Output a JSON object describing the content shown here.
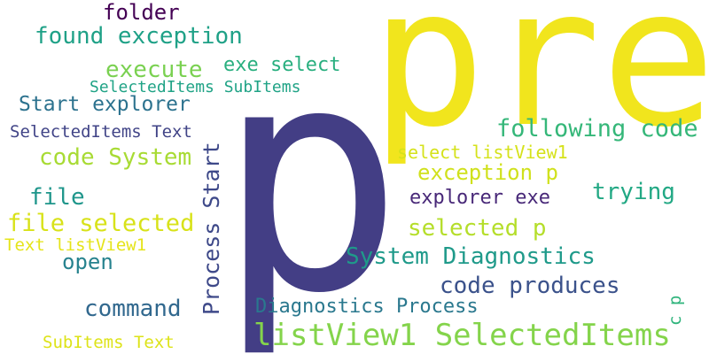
{
  "words": [
    {
      "id": "pre",
      "text": "pre",
      "color": "#f1e51d"
    },
    {
      "id": "p",
      "text": "p",
      "color": "#433e85"
    },
    {
      "id": "listview1-selecteditems",
      "text": "listView1 SelectedItems",
      "color": "#84d44b"
    },
    {
      "id": "system-diagnostics",
      "text": "System Diagnostics",
      "color": "#1f9a8a"
    },
    {
      "id": "following-code",
      "text": "following code",
      "color": "#35b779"
    },
    {
      "id": "exception-p",
      "text": "exception p",
      "color": "#d0e11c"
    },
    {
      "id": "selected-p",
      "text": "selected p",
      "color": "#b5de2b"
    },
    {
      "id": "code-produces",
      "text": "code produces",
      "color": "#3b528b"
    },
    {
      "id": "trying",
      "text": "trying",
      "color": "#22a884"
    },
    {
      "id": "explorer-exe",
      "text": "explorer exe",
      "color": "#482878"
    },
    {
      "id": "select-listview1",
      "text": "select listView1",
      "color": "#d5e21a"
    },
    {
      "id": "diagnostics-process",
      "text": "Diagnostics Process",
      "color": "#2a788e"
    },
    {
      "id": "process-start",
      "text": "Process Start",
      "color": "#3e4989"
    },
    {
      "id": "command",
      "text": "command",
      "color": "#31688e"
    },
    {
      "id": "open",
      "text": "open",
      "color": "#26828e"
    },
    {
      "id": "file-selected",
      "text": "file selected",
      "color": "#d8e219"
    },
    {
      "id": "file",
      "text": "file",
      "color": "#1f968b"
    },
    {
      "id": "code-system",
      "text": "code System",
      "color": "#a8db34"
    },
    {
      "id": "selecteditems-text",
      "text": "SelectedItems Text",
      "color": "#414487"
    },
    {
      "id": "start-explorer",
      "text": "Start explorer",
      "color": "#2c728e"
    },
    {
      "id": "selecteditems-subitems",
      "text": "SelectedItems SubItems",
      "color": "#20a386"
    },
    {
      "id": "execute",
      "text": "execute",
      "color": "#7ad151"
    },
    {
      "id": "exe-select",
      "text": "exe select",
      "color": "#29af7f"
    },
    {
      "id": "found-exception",
      "text": "found exception",
      "color": "#1fa187"
    },
    {
      "id": "folder",
      "text": "folder",
      "color": "#440154"
    },
    {
      "id": "text-listview1",
      "text": "Text listView1",
      "color": "#e5e419"
    },
    {
      "id": "subitems-text",
      "text": "SubItems Text",
      "color": "#dde318"
    },
    {
      "id": "c-p",
      "text": "c p",
      "color": "#2fb47c"
    }
  ]
}
